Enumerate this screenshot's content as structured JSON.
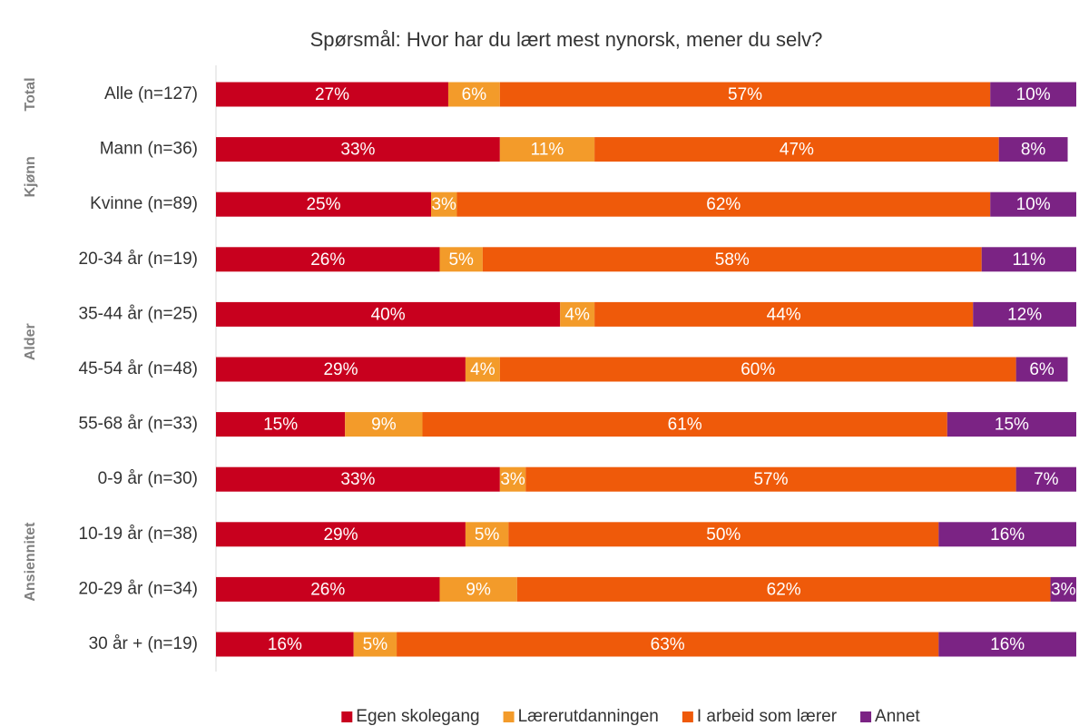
{
  "chart_data": {
    "type": "stacked_barh",
    "title": "Spørsmål: Hvor har du lært mest nynorsk, mener du selv?",
    "categories": [
      "Alle (n=127)",
      "Mann (n=36)",
      "Kvinne (n=89)",
      "20-34 år (n=19)",
      "35-44 år (n=25)",
      "45-54 år (n=48)",
      "55-68 år (n=33)",
      "0-9 år (n=30)",
      "10-19 år (n=38)",
      "20-29 år (n=34)",
      "30 år + (n=19)"
    ],
    "group_labels": [
      "Total",
      "Kjønn",
      null,
      "Alder",
      null,
      null,
      null,
      "Ansiennitet",
      null,
      null,
      null
    ],
    "xlim": [
      0,
      100
    ],
    "series": [
      {
        "name": "Egen skolegang",
        "color": "#c8001e",
        "values": [
          27,
          33,
          25,
          26,
          40,
          29,
          15,
          33,
          29,
          26,
          16
        ],
        "value_labels": [
          "27%",
          "33%",
          "25%",
          "26%",
          "40%",
          "29%",
          "15%",
          "33%",
          "29%",
          "26%",
          "16%"
        ]
      },
      {
        "name": "Lærerutdanningen",
        "color": "#f39b2a",
        "values": [
          6,
          11,
          3,
          5,
          4,
          4,
          9,
          3,
          5,
          9,
          5
        ],
        "value_labels": [
          "6%",
          "11%",
          "3%",
          "5%",
          "4%",
          "4%",
          "9%",
          "3%",
          "5%",
          "9%",
          "5%"
        ]
      },
      {
        "name": "I arbeid som lærer",
        "color": "#ef5a0a",
        "values": [
          57,
          47,
          62,
          58,
          44,
          60,
          61,
          57,
          50,
          62,
          63
        ],
        "value_labels": [
          "57%",
          "47%",
          "62%",
          "58%",
          "44%",
          "60%",
          "61%",
          "57%",
          "50%",
          "62%",
          "63%"
        ]
      },
      {
        "name": "Annet",
        "color": "#7b2384",
        "values": [
          10,
          8,
          10,
          11,
          12,
          6,
          15,
          7,
          16,
          3,
          16
        ],
        "value_labels": [
          "10%",
          "8%",
          "10%",
          "11%",
          "12%",
          "6%",
          "15%",
          "7%",
          "16%",
          "3%",
          "16%"
        ]
      }
    ]
  }
}
